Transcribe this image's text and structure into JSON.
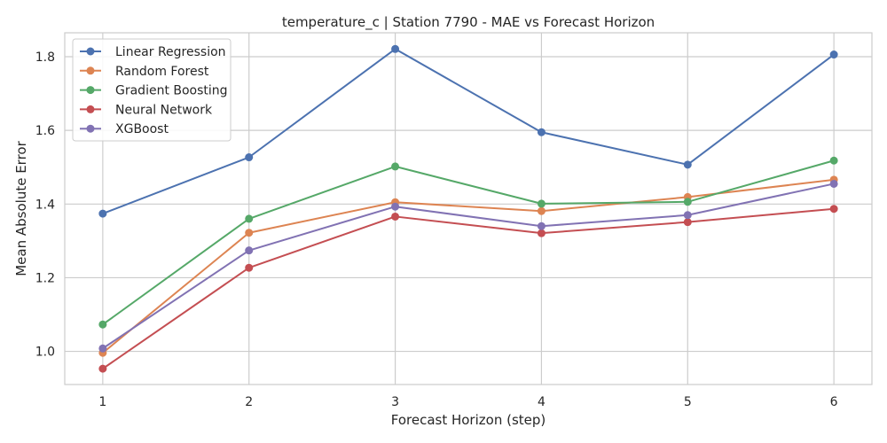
{
  "chart_data": {
    "type": "line",
    "title": "temperature_c | Station 7790 - MAE vs Forecast Horizon",
    "xlabel": "Forecast Horizon (step)",
    "ylabel": "Mean Absolute Error",
    "x": [
      1,
      2,
      3,
      4,
      5,
      6
    ],
    "x_tick_labels": [
      "1",
      "2",
      "3",
      "4",
      "5",
      "6"
    ],
    "y_ticks": [
      1.0,
      1.2,
      1.4,
      1.6,
      1.8
    ],
    "y_tick_labels": [
      "1.0",
      "1.2",
      "1.4",
      "1.6",
      "1.8"
    ],
    "xlim": [
      0.74,
      6.26
    ],
    "ylim": [
      0.91,
      1.865
    ],
    "grid": true,
    "legend_position": "top-left",
    "series": [
      {
        "name": "Linear Regression",
        "color": "#4c72b0",
        "values": [
          1.374,
          1.527,
          1.821,
          1.595,
          1.507,
          1.806
        ]
      },
      {
        "name": "Random Forest",
        "color": "#dd8452",
        "values": [
          0.996,
          1.322,
          1.405,
          1.381,
          1.419,
          1.466
        ]
      },
      {
        "name": "Gradient Boosting",
        "color": "#55a868",
        "values": [
          1.073,
          1.36,
          1.502,
          1.401,
          1.406,
          1.518
        ]
      },
      {
        "name": "Neural Network",
        "color": "#c44e52",
        "values": [
          0.953,
          1.227,
          1.366,
          1.321,
          1.351,
          1.387
        ]
      },
      {
        "name": "XGBoost",
        "color": "#8172b3",
        "values": [
          1.008,
          1.274,
          1.393,
          1.34,
          1.37,
          1.455
        ]
      }
    ]
  }
}
